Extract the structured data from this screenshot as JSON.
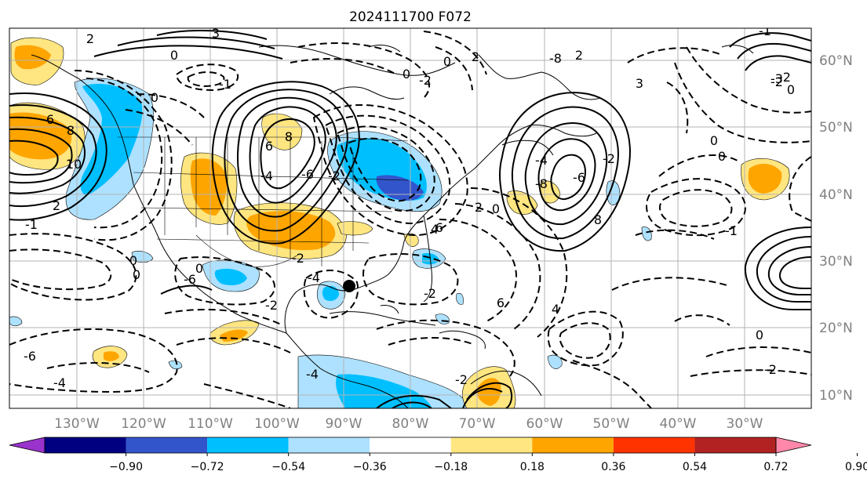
{
  "title": "2024111700 F072",
  "lon_labels": [
    "130°W",
    "120°W",
    "110°W",
    "100°W",
    "90°W",
    "80°W",
    "70°W",
    "60°W",
    "50°W",
    "40°W",
    "30°W"
  ],
  "lat_labels": [
    "60°N",
    "50°N",
    "40°N",
    "30°N",
    "20°N",
    "10°N"
  ],
  "colorbar": {
    "ticks": [
      "−0.90",
      "−0.72",
      "−0.54",
      "−0.36",
      "−0.18",
      "0.18",
      "0.36",
      "0.54",
      "0.72",
      "0.90"
    ],
    "colors": [
      "#9933cc",
      "#000080",
      "#3355cc",
      "#00bfff",
      "#ade1ff",
      "#ffffff",
      "#ffe680",
      "#ffa500",
      "#ff3300",
      "#b22222",
      "#ff88aa"
    ]
  },
  "contour_labels": [
    "3",
    "2",
    "0",
    "-1",
    "0",
    "6",
    "8",
    "10",
    "2",
    "-1",
    "6",
    "8",
    "-6",
    "-4",
    "-2",
    "0",
    "-2",
    "0",
    "2",
    "6",
    "4",
    "2",
    "0",
    "-8",
    "-6",
    "-4",
    "-2",
    "8",
    "4",
    "6",
    "-2",
    "-4",
    "-2",
    "0",
    "0",
    "-6",
    "-2",
    "-4",
    "-2",
    "0",
    "-4",
    "-6",
    "-8",
    "2",
    "3",
    "0",
    "0",
    "-1",
    "0",
    "-2",
    "-3",
    "-2",
    "0",
    "-2",
    "-1"
  ],
  "marker": "storm-center"
}
